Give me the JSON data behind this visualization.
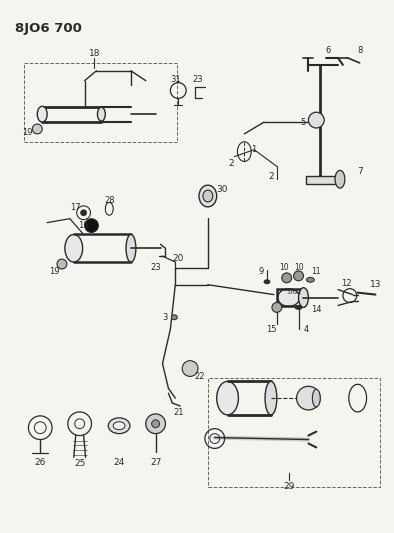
{
  "title": "8JO6 700",
  "bg_color": "#f5f5f0",
  "line_color": "#2a2a2a",
  "fig_width": 3.94,
  "fig_height": 5.33,
  "dpi": 100,
  "label_fontsize": 6.5
}
